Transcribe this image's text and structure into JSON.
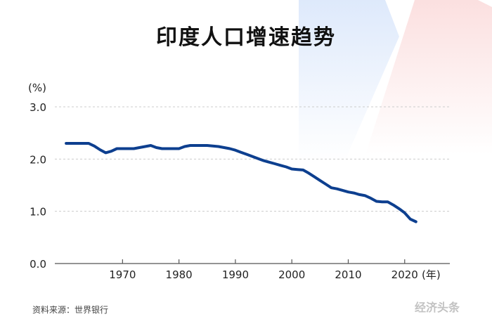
{
  "title": "印度人口增速趋势",
  "source": "资料来源：世界银行",
  "watermark": "经济头条",
  "colors": {
    "line": "#0d3f8f",
    "grid": "#cccccc",
    "axis": "#555555"
  },
  "chart_data": {
    "type": "line",
    "title": "印度人口增速趋势",
    "ylabel": "(%)",
    "xlabel": "(年)",
    "xlim": [
      1958,
      2028
    ],
    "ylim": [
      0,
      3
    ],
    "xticks": [
      1970,
      1980,
      1990,
      2000,
      2010,
      2020
    ],
    "xtick_labels": [
      "1970",
      "1980",
      "1990",
      "2000",
      "2010",
      "2020"
    ],
    "yticks": [
      0,
      1,
      2,
      3
    ],
    "ytick_labels": [
      "0.0",
      "1.0",
      "2.0",
      "3.0"
    ],
    "grid": "horizontal-dashed",
    "series": [
      {
        "name": "",
        "x": [
          1960,
          1961,
          1962,
          1963,
          1964,
          1965,
          1966,
          1967,
          1968,
          1969,
          1970,
          1971,
          1972,
          1973,
          1974,
          1975,
          1976,
          1977,
          1978,
          1979,
          1980,
          1981,
          1982,
          1983,
          1984,
          1985,
          1986,
          1987,
          1988,
          1989,
          1990,
          1991,
          1992,
          1993,
          1994,
          1995,
          1996,
          1997,
          1998,
          1999,
          2000,
          2001,
          2002,
          2003,
          2004,
          2005,
          2006,
          2007,
          2008,
          2009,
          2010,
          2011,
          2012,
          2013,
          2014,
          2015,
          2016,
          2017,
          2018,
          2019,
          2020,
          2021,
          2022
        ],
        "y": [
          2.3,
          2.3,
          2.3,
          2.3,
          2.3,
          2.25,
          2.18,
          2.12,
          2.15,
          2.2,
          2.2,
          2.2,
          2.2,
          2.22,
          2.24,
          2.26,
          2.22,
          2.2,
          2.2,
          2.2,
          2.2,
          2.24,
          2.26,
          2.26,
          2.26,
          2.26,
          2.25,
          2.24,
          2.22,
          2.2,
          2.17,
          2.13,
          2.09,
          2.05,
          2.01,
          1.97,
          1.94,
          1.91,
          1.88,
          1.85,
          1.81,
          1.8,
          1.79,
          1.73,
          1.66,
          1.59,
          1.52,
          1.45,
          1.43,
          1.4,
          1.37,
          1.35,
          1.32,
          1.3,
          1.25,
          1.19,
          1.18,
          1.18,
          1.12,
          1.05,
          0.97,
          0.85,
          0.8
        ]
      }
    ]
  }
}
